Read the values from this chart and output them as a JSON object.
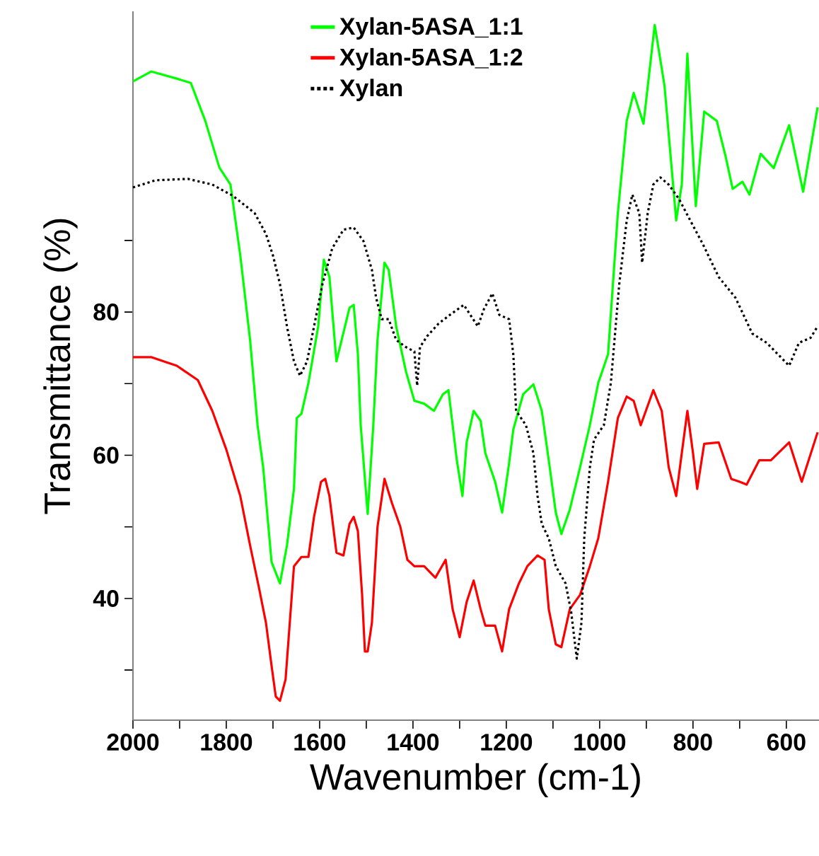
{
  "chart_data": {
    "type": "line",
    "xlabel": "Wavenumber (cm-1)",
    "ylabel": "Transmittance (%)",
    "xlim": [
      2000,
      530
    ],
    "ylim": [
      23,
      122
    ],
    "xticks": [
      2000,
      {
        "value": 1900,
        "label": null
      },
      1800,
      {
        "value": 1700,
        "label": null
      },
      1600,
      {
        "value": 1500,
        "label": null
      },
      1400,
      {
        "value": 1300,
        "label": null
      },
      1200,
      {
        "value": 1100,
        "label": null
      },
      1000,
      {
        "value": 900,
        "label": null
      },
      800,
      {
        "value": 700,
        "label": null
      },
      600
    ],
    "yticks": [
      {
        "value": 30,
        "label": null
      },
      40,
      {
        "value": 50,
        "label": null
      },
      60,
      {
        "value": 70,
        "label": null
      },
      80,
      {
        "value": 90,
        "label": null
      }
    ],
    "grid": false,
    "legend": "top",
    "marker": "none",
    "series": [
      {
        "name": "Xylan-5ASA_1:1",
        "color": "#00ff00",
        "line_style": "solid",
        "x": [
          2000,
          1961,
          1906,
          1876,
          1845,
          1815,
          1791,
          1770,
          1749,
          1733,
          1721,
          1703,
          1685,
          1670,
          1655,
          1649,
          1639,
          1624,
          1603,
          1591,
          1579,
          1564,
          1536,
          1527,
          1518,
          1512,
          1497,
          1485,
          1476,
          1461,
          1452,
          1436,
          1415,
          1397,
          1376,
          1355,
          1336,
          1324,
          1315,
          1306,
          1294,
          1285,
          1270,
          1255,
          1245,
          1224,
          1209,
          1194,
          1185,
          1164,
          1142,
          1124,
          1109,
          1094,
          1082,
          1064,
          1042,
          1021,
          1003,
          982,
          961,
          942,
          927,
          906,
          882,
          861,
          836,
          824,
          812,
          794,
          776,
          749,
          730,
          715,
          694,
          679,
          655,
          627,
          594,
          564,
          533
        ],
        "values": [
          112.2,
          113.6,
          112.6,
          112.0,
          106.7,
          100.2,
          97.8,
          87.9,
          76.1,
          64.2,
          58.3,
          45.1,
          42.1,
          47.4,
          55.3,
          65.2,
          65.8,
          70.1,
          78.0,
          87.3,
          84.9,
          73.1,
          80.6,
          81.0,
          74.1,
          64.2,
          51.8,
          64.2,
          76.1,
          86.9,
          85.9,
          78.0,
          71.7,
          67.6,
          67.2,
          66.2,
          68.5,
          69.1,
          64.2,
          59.3,
          54.3,
          61.8,
          66.2,
          64.8,
          60.3,
          56.3,
          52.0,
          58.9,
          63.6,
          68.5,
          69.9,
          66.2,
          59.3,
          52.0,
          49.0,
          52.4,
          58.3,
          64.2,
          70.1,
          74.1,
          93.8,
          106.7,
          110.6,
          106.3,
          120.1,
          111.6,
          92.8,
          97.8,
          116.1,
          94.8,
          108.0,
          106.7,
          101.7,
          97.2,
          98.2,
          96.4,
          102.1,
          100.1,
          106.1,
          96.8,
          108.6
        ]
      },
      {
        "name": "Xylan-5ASA_1:2",
        "color": "#ff0000",
        "line_style": "solid",
        "x": [
          2000,
          1961,
          1906,
          1861,
          1830,
          1800,
          1770,
          1749,
          1730,
          1715,
          1703,
          1694,
          1685,
          1673,
          1664,
          1655,
          1639,
          1624,
          1612,
          1597,
          1588,
          1579,
          1564,
          1549,
          1536,
          1527,
          1518,
          1509,
          1503,
          1497,
          1488,
          1476,
          1461,
          1445,
          1427,
          1412,
          1397,
          1376,
          1352,
          1330,
          1315,
          1300,
          1285,
          1270,
          1255,
          1245,
          1224,
          1209,
          1194,
          1173,
          1155,
          1133,
          1118,
          1109,
          1094,
          1082,
          1064,
          1042,
          1021,
          1003,
          982,
          961,
          942,
          927,
          912,
          885,
          867,
          852,
          836,
          824,
          812,
          800,
          791,
          776,
          745,
          718,
          700,
          685,
          658,
          633,
          594,
          567,
          533
        ],
        "values": [
          73.7,
          73.7,
          72.5,
          70.5,
          66.2,
          60.8,
          54.3,
          47.4,
          41.5,
          36.6,
          30.6,
          26.3,
          25.7,
          28.7,
          36.6,
          44.5,
          45.8,
          45.8,
          51.4,
          56.3,
          56.7,
          54.3,
          46.4,
          46.0,
          50.4,
          51.4,
          49.4,
          40.5,
          32.6,
          32.6,
          36.6,
          50.0,
          56.7,
          53.3,
          50.0,
          45.4,
          44.5,
          44.5,
          42.9,
          45.4,
          38.5,
          34.6,
          39.5,
          42.5,
          38.5,
          36.2,
          36.2,
          32.6,
          38.5,
          42.1,
          44.5,
          46.0,
          45.4,
          38.5,
          33.6,
          33.2,
          38.5,
          40.5,
          44.5,
          48.4,
          56.3,
          65.2,
          68.2,
          67.6,
          64.2,
          69.1,
          66.2,
          58.3,
          54.3,
          60.3,
          66.2,
          60.3,
          55.3,
          61.6,
          61.8,
          56.7,
          56.3,
          55.9,
          59.3,
          59.3,
          61.8,
          56.3,
          63.2
        ]
      },
      {
        "name": "Xylan",
        "color": "#000000",
        "line_style": "dotted",
        "x": [
          2000,
          1952,
          1882,
          1830,
          1785,
          1739,
          1715,
          1700,
          1685,
          1670,
          1655,
          1642,
          1627,
          1612,
          1594,
          1573,
          1549,
          1527,
          1506,
          1488,
          1479,
          1467,
          1452,
          1436,
          1415,
          1397,
          1391,
          1385,
          1370,
          1345,
          1321,
          1291,
          1261,
          1248,
          1230,
          1215,
          1194,
          1185,
          1179,
          1158,
          1142,
          1133,
          1124,
          1109,
          1094,
          1073,
          1061,
          1049,
          1039,
          1033,
          1021,
          1012,
          991,
          976,
          958,
          942,
          930,
          915,
          909,
          897,
          885,
          870,
          852,
          830,
          806,
          779,
          745,
          709,
          673,
          642,
          618,
          594,
          573,
          548,
          533
        ],
        "values": [
          97.4,
          98.4,
          98.6,
          97.8,
          96.2,
          93.8,
          90.9,
          87.9,
          83.9,
          78.0,
          73.1,
          71.1,
          73.1,
          78.0,
          83.9,
          88.9,
          91.5,
          91.8,
          89.9,
          85.9,
          82.0,
          79.0,
          79.0,
          76.1,
          75.1,
          74.5,
          69.7,
          75.1,
          76.6,
          78.4,
          79.6,
          81.0,
          78.0,
          80.4,
          82.6,
          79.6,
          79.0,
          74.1,
          66.2,
          64.2,
          60.3,
          54.3,
          50.4,
          48.4,
          44.5,
          42.1,
          38.1,
          31.6,
          36.6,
          48.4,
          58.3,
          62.2,
          64.2,
          70.1,
          83.9,
          92.8,
          96.4,
          93.8,
          86.9,
          93.8,
          97.8,
          98.8,
          97.8,
          95.8,
          92.8,
          89.5,
          84.9,
          82.0,
          77.0,
          75.7,
          74.1,
          72.5,
          75.7,
          76.4,
          78.0
        ]
      }
    ]
  }
}
